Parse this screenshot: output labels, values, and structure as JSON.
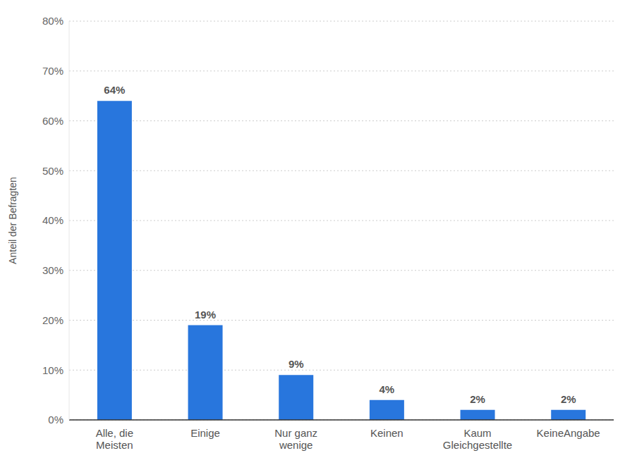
{
  "chart_data": {
    "type": "bar",
    "y_label": "Anteil der Befragten",
    "categories": [
      "Alle, die Meisten",
      "Einige",
      "Nur ganz wenige",
      "Keinen",
      "Kaum Gleichgestellte",
      "KeineAngabe"
    ],
    "values": [
      64,
      19,
      9,
      4,
      2,
      2
    ],
    "value_labels": [
      "64%",
      "19%",
      "9%",
      "4%",
      "2%",
      "2%"
    ],
    "color": "#2876dd",
    "ylim": [
      0,
      80
    ],
    "yticks": [
      {
        "value": 0,
        "label": "0%"
      },
      {
        "value": 10,
        "label": "10%"
      },
      {
        "value": 20,
        "label": "20%"
      },
      {
        "value": 30,
        "label": "30%"
      },
      {
        "value": 40,
        "label": "40%"
      },
      {
        "value": 50,
        "label": "50%"
      },
      {
        "value": 60,
        "label": "60%"
      },
      {
        "value": 70,
        "label": "70%"
      },
      {
        "value": 80,
        "label": "80%"
      }
    ],
    "grid": true,
    "data_labels": true
  }
}
